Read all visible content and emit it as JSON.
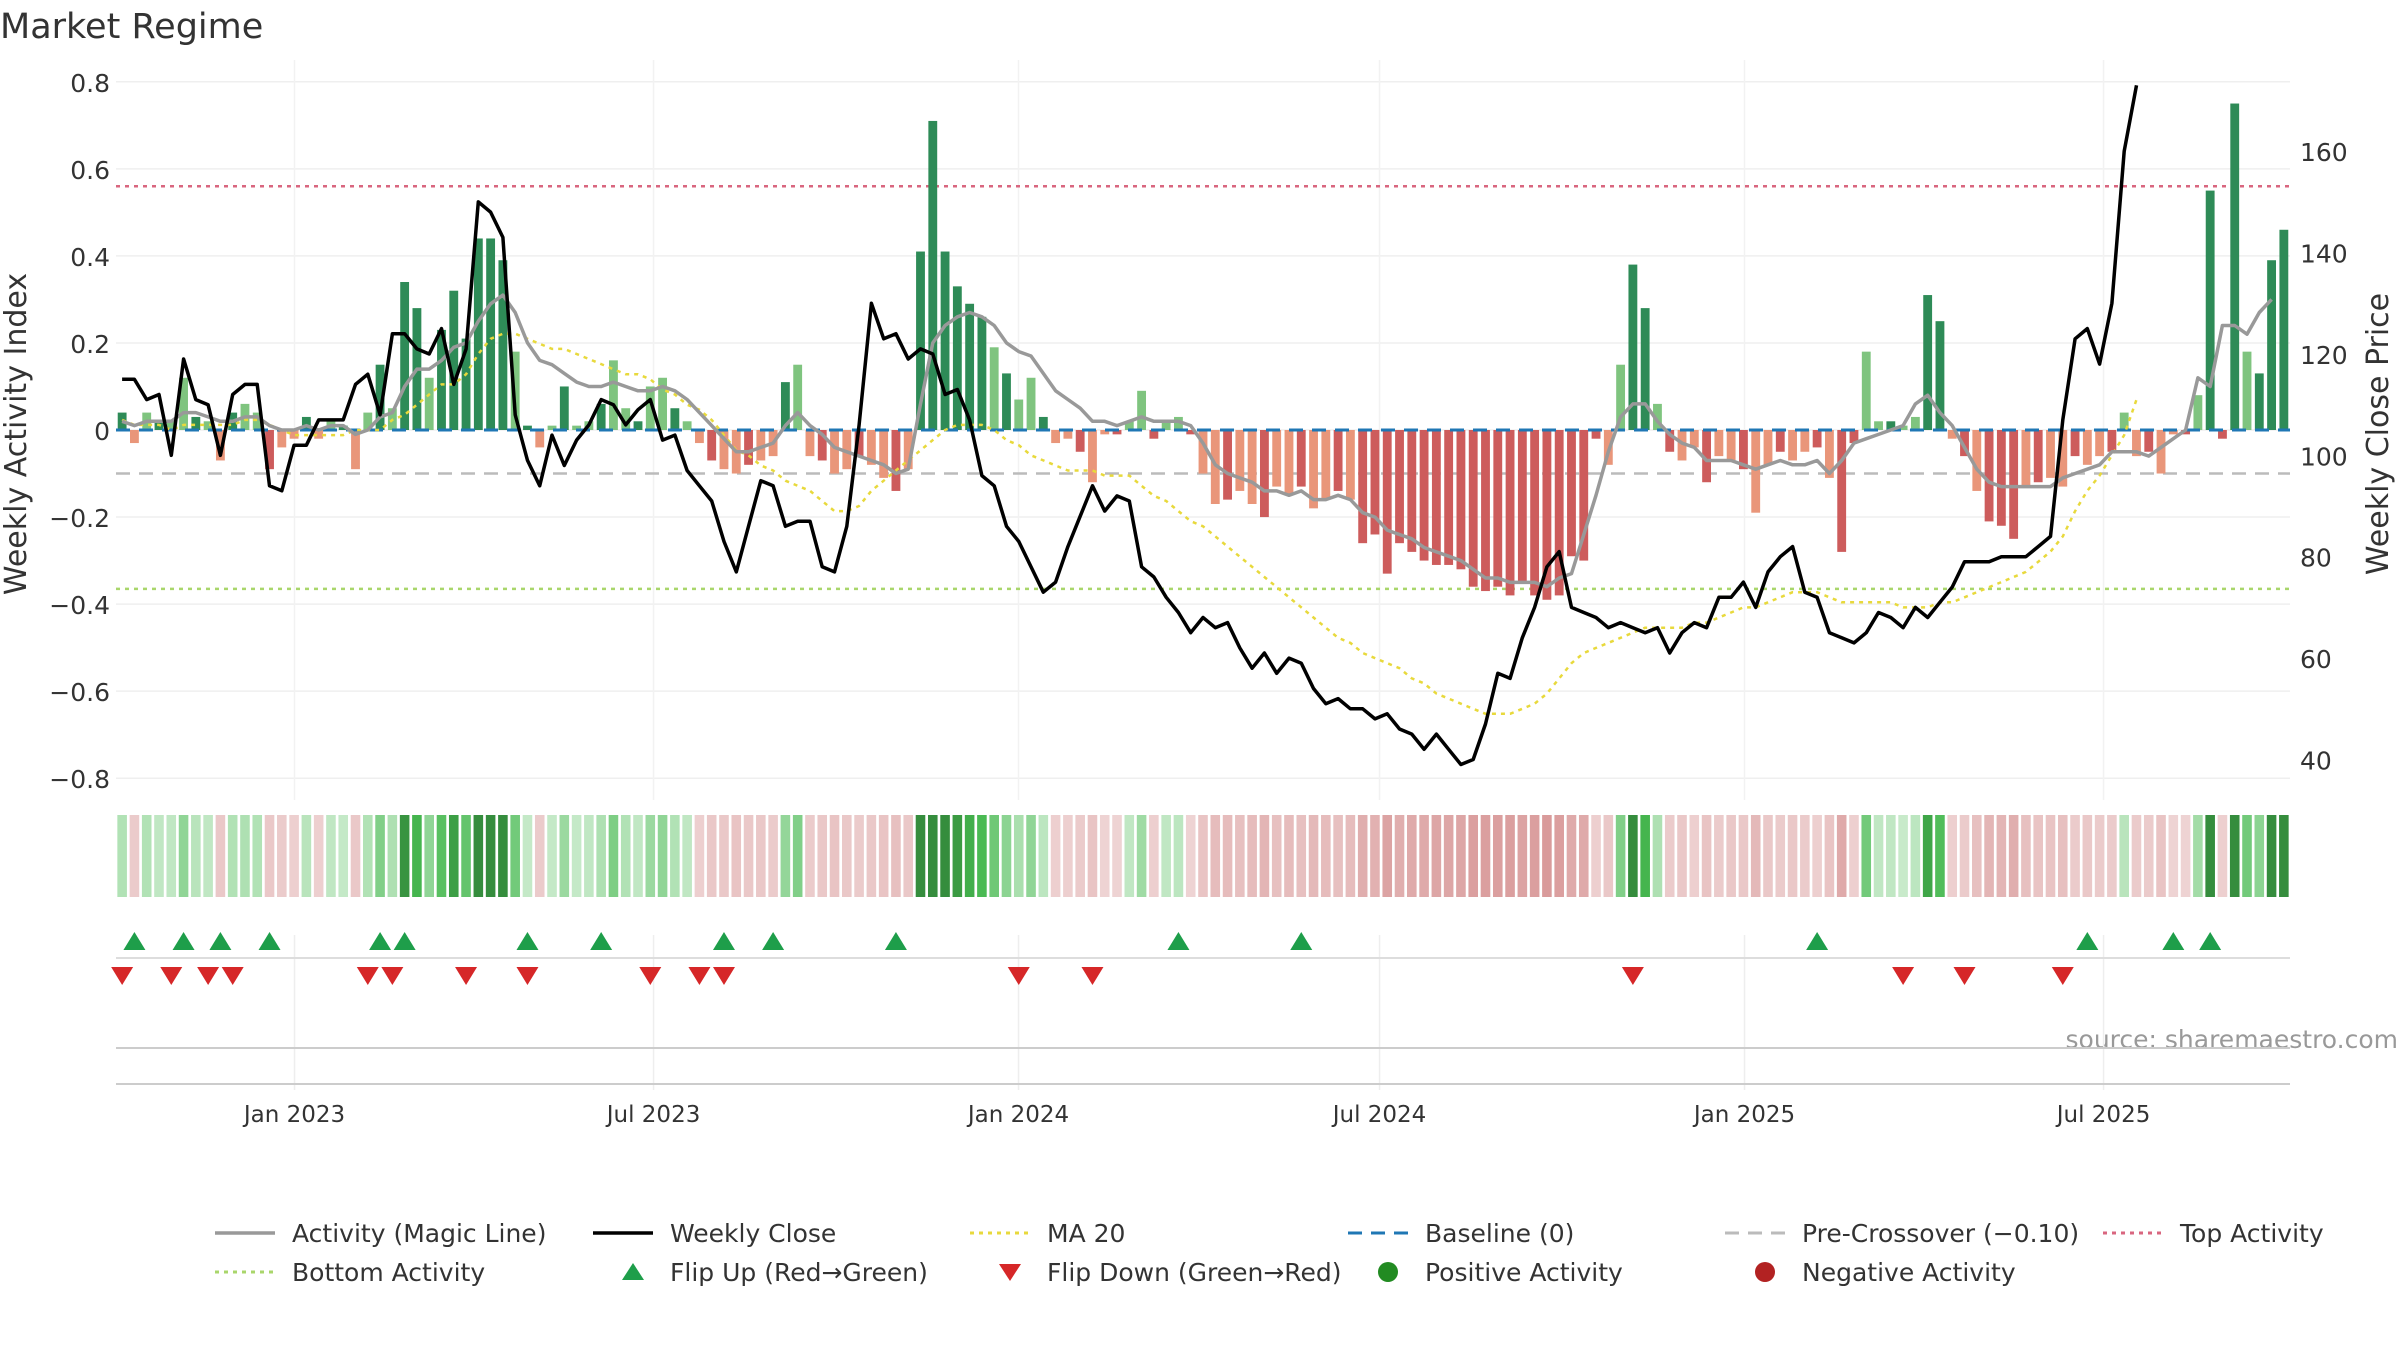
{
  "title": "Market Regime",
  "source": "source: sharemaestro.com",
  "colors": {
    "green_dark": "#2e8b57",
    "green_light": "#7fc47f",
    "red_dark": "#cd5c5c",
    "red_light": "#e9967a",
    "magic_line": "#999999",
    "close": "#000000",
    "ma20": "#e8d93c",
    "baseline": "#1f77b4",
    "pre_crossover": "#bbbbbb",
    "top": "#d9667f",
    "bottom": "#a9d66b",
    "flip_up": "#1e9e4a",
    "flip_down": "#d62728",
    "positive": "#228b22",
    "negative": "#b22222"
  },
  "chart_data": {
    "type": "bar",
    "title": "Market Regime",
    "ylabel": "Weekly Activity Index",
    "y2label": "Weekly Close Price",
    "ylim": [
      -0.85,
      0.85
    ],
    "y2lim": [
      32,
      178
    ],
    "yticks": [
      "0.8",
      "0.6",
      "0.4",
      "0.2",
      "0",
      "−0.2",
      "−0.4",
      "−0.6",
      "−0.8"
    ],
    "ytick_values": [
      0.8,
      0.6,
      0.4,
      0.2,
      0,
      -0.2,
      -0.4,
      -0.6,
      -0.8
    ],
    "y2ticks": [
      "160",
      "140",
      "120",
      "100",
      "80",
      "60",
      "40"
    ],
    "y2tick_values": [
      160,
      140,
      120,
      100,
      80,
      60,
      40
    ],
    "x_start": "2022-10-03",
    "x_end": "2025-10-03",
    "xticks": [
      "Jan 2023",
      "Jul 2023",
      "Jan 2024",
      "Jul 2024",
      "Jan 2025",
      "Jul 2025"
    ],
    "xtick_dates": [
      "2023-01-01",
      "2023-07-01",
      "2024-01-01",
      "2024-07-01",
      "2025-01-01",
      "2025-07-01"
    ],
    "grid": true,
    "legend_position": "bottom",
    "reference_lines": {
      "baseline": 0,
      "pre_crossover": -0.1,
      "top": 0.56,
      "bottom": -0.365
    },
    "activity": [
      0.04,
      -0.03,
      0.04,
      0.02,
      0.02,
      0.12,
      0.03,
      0.02,
      -0.07,
      0.04,
      0.06,
      0.04,
      -0.09,
      -0.04,
      -0.02,
      0.03,
      -0.02,
      0.02,
      0.01,
      -0.09,
      0.04,
      0.15,
      0.05,
      0.34,
      0.28,
      0.12,
      0.23,
      0.32,
      0.21,
      0.44,
      0.44,
      0.39,
      0.18,
      0.01,
      -0.04,
      0.01,
      0.1,
      0.01,
      0.02,
      0.06,
      0.16,
      0.05,
      0.02,
      0.1,
      0.12,
      0.05,
      0.02,
      -0.03,
      -0.07,
      -0.09,
      -0.1,
      -0.08,
      -0.07,
      -0.06,
      0.11,
      0.15,
      -0.06,
      -0.07,
      -0.1,
      -0.09,
      -0.06,
      -0.08,
      -0.11,
      -0.14,
      -0.09,
      0.41,
      0.71,
      0.41,
      0.33,
      0.29,
      0.26,
      0.19,
      0.13,
      0.07,
      0.12,
      0.03,
      -0.03,
      -0.02,
      -0.05,
      -0.12,
      -0.01,
      -0.01,
      0.02,
      0.09,
      -0.02,
      0.02,
      0.03,
      -0.01,
      -0.1,
      -0.17,
      -0.16,
      -0.14,
      -0.17,
      -0.2,
      -0.13,
      -0.15,
      -0.13,
      -0.18,
      -0.16,
      -0.14,
      -0.16,
      -0.26,
      -0.24,
      -0.33,
      -0.26,
      -0.28,
      -0.3,
      -0.31,
      -0.31,
      -0.32,
      -0.36,
      -0.37,
      -0.36,
      -0.38,
      -0.35,
      -0.38,
      -0.39,
      -0.38,
      -0.29,
      -0.3,
      -0.02,
      -0.08,
      0.15,
      0.38,
      0.28,
      0.06,
      -0.05,
      -0.07,
      -0.04,
      -0.12,
      -0.06,
      -0.07,
      -0.09,
      -0.19,
      -0.08,
      -0.05,
      -0.07,
      -0.05,
      -0.04,
      -0.11,
      -0.28,
      -0.03,
      0.18,
      0.02,
      0.02,
      0.01,
      0.03,
      0.31,
      0.25,
      -0.02,
      -0.06,
      -0.14,
      -0.21,
      -0.22,
      -0.25,
      -0.13,
      -0.12,
      -0.11,
      -0.13,
      -0.06,
      -0.08,
      -0.06,
      -0.05,
      0.04,
      -0.06,
      -0.05,
      -0.1,
      -0.01,
      -0.01,
      0.08,
      0.55,
      -0.02,
      0.75,
      0.18,
      0.13,
      0.39,
      0.46
    ],
    "magic_line": [
      0.02,
      0.01,
      0.02,
      0.02,
      0.02,
      0.04,
      0.04,
      0.03,
      0.02,
      0.02,
      0.03,
      0.03,
      0.01,
      0.0,
      0.0,
      0.01,
      0.0,
      0.01,
      0.01,
      -0.01,
      0.0,
      0.03,
      0.04,
      0.1,
      0.14,
      0.14,
      0.16,
      0.19,
      0.2,
      0.25,
      0.29,
      0.31,
      0.27,
      0.2,
      0.16,
      0.15,
      0.13,
      0.11,
      0.1,
      0.1,
      0.11,
      0.1,
      0.09,
      0.09,
      0.1,
      0.09,
      0.07,
      0.04,
      0.01,
      -0.02,
      -0.05,
      -0.05,
      -0.04,
      -0.03,
      0.01,
      0.04,
      0.01,
      -0.01,
      -0.04,
      -0.05,
      -0.06,
      -0.07,
      -0.08,
      -0.1,
      -0.09,
      0.06,
      0.2,
      0.24,
      0.26,
      0.27,
      0.26,
      0.24,
      0.2,
      0.18,
      0.17,
      0.13,
      0.09,
      0.07,
      0.05,
      0.02,
      0.02,
      0.01,
      0.02,
      0.03,
      0.02,
      0.02,
      0.02,
      0.01,
      -0.03,
      -0.08,
      -0.1,
      -0.11,
      -0.12,
      -0.14,
      -0.14,
      -0.15,
      -0.14,
      -0.16,
      -0.16,
      -0.15,
      -0.16,
      -0.19,
      -0.2,
      -0.23,
      -0.24,
      -0.25,
      -0.27,
      -0.28,
      -0.29,
      -0.3,
      -0.32,
      -0.34,
      -0.34,
      -0.35,
      -0.35,
      -0.35,
      -0.36,
      -0.34,
      -0.33,
      -0.24,
      -0.15,
      -0.05,
      0.03,
      0.06,
      0.06,
      0.02,
      -0.01,
      -0.03,
      -0.04,
      -0.07,
      -0.07,
      -0.07,
      -0.08,
      -0.09,
      -0.08,
      -0.07,
      -0.08,
      -0.08,
      -0.07,
      -0.1,
      -0.07,
      -0.03,
      -0.02,
      -0.01,
      0.0,
      0.01,
      0.06,
      0.08,
      0.04,
      0.01,
      -0.04,
      -0.09,
      -0.12,
      -0.13,
      -0.13,
      -0.13,
      -0.13,
      -0.13,
      -0.11,
      -0.1,
      -0.09,
      -0.08,
      -0.05,
      -0.05,
      -0.05,
      -0.06,
      -0.04,
      -0.02,
      0.0,
      0.12,
      0.1,
      0.24,
      0.24,
      0.22,
      0.27,
      0.3
    ],
    "weekly_close": [
      115,
      115,
      111,
      112,
      100,
      119,
      111,
      110,
      100,
      112,
      114,
      114,
      94,
      93,
      102,
      102,
      107,
      107,
      107,
      114,
      116,
      108,
      124,
      124,
      121,
      120,
      125,
      114,
      121,
      150,
      148,
      143,
      108,
      99,
      94,
      104,
      98,
      103,
      106,
      111,
      110,
      106,
      109,
      111,
      103,
      104,
      97,
      94,
      91,
      83,
      77,
      86,
      95,
      94,
      86,
      87,
      87,
      78,
      77,
      86,
      106,
      130,
      123,
      124,
      119,
      121,
      120,
      112,
      113,
      107,
      96,
      94,
      86,
      83,
      78,
      73,
      75,
      82,
      88,
      94,
      89,
      92,
      91,
      78,
      76,
      72,
      69,
      65,
      68,
      66,
      67,
      62,
      58,
      61,
      57,
      60,
      59,
      54,
      51,
      52,
      50,
      50,
      48,
      49,
      46,
      45,
      42,
      45,
      42,
      39,
      40,
      47,
      57,
      56,
      64,
      70,
      78,
      81,
      70,
      69,
      68,
      66,
      67,
      66,
      65,
      66,
      61,
      65,
      67,
      66,
      72,
      72,
      75,
      70,
      77,
      80,
      82,
      73,
      72,
      65,
      64,
      63,
      65,
      69,
      68,
      66,
      70,
      68,
      71,
      74,
      79,
      79,
      79,
      80,
      80,
      80,
      82,
      84,
      107,
      123,
      125,
      118,
      130,
      160,
      173
    ],
    "ma20": [
      107,
      106,
      106,
      106,
      105,
      106,
      106,
      106,
      106,
      106,
      107,
      107,
      106,
      105,
      104,
      104,
      104,
      104,
      104,
      105,
      105,
      105,
      107,
      108,
      110,
      112,
      114,
      114,
      116,
      120,
      123,
      124,
      124,
      123,
      122,
      121,
      121,
      120,
      119,
      118,
      117,
      116,
      116,
      115,
      113,
      112,
      110,
      109,
      107,
      104,
      101,
      100,
      98,
      97,
      95,
      94,
      93,
      91,
      89,
      89,
      90,
      93,
      95,
      97,
      99,
      101,
      103,
      105,
      106,
      106,
      106,
      105,
      103,
      102,
      100,
      99,
      98,
      97,
      97,
      97,
      96,
      96,
      96,
      94,
      92,
      91,
      89,
      87,
      86,
      84,
      82,
      80,
      78,
      76,
      74,
      72,
      70,
      68,
      66,
      64,
      63,
      61,
      60,
      59,
      58,
      56,
      55,
      53,
      52,
      51,
      50,
      49,
      49,
      49,
      50,
      51,
      53,
      56,
      59,
      61,
      62,
      63,
      64,
      65,
      66,
      66,
      66,
      66,
      67,
      67,
      68,
      69,
      70,
      70,
      71,
      72,
      73,
      73,
      73,
      72,
      71,
      71,
      71,
      71,
      71,
      70,
      70,
      70,
      71,
      71,
      72,
      73,
      74,
      75,
      76,
      77,
      79,
      81,
      84,
      89,
      93,
      96,
      100,
      104,
      111
    ],
    "regime_strip_intensity": [
      0.14,
      0.08,
      0.14,
      0.07,
      0.07,
      0.33,
      0.1,
      0.07,
      0.1,
      0.14,
      0.17,
      0.14,
      0.12,
      0.06,
      0.03,
      0.1,
      0.03,
      0.07,
      0.04,
      0.12,
      0.14,
      0.42,
      0.17,
      0.95,
      0.78,
      0.33,
      0.64,
      0.9,
      0.58,
      1.0,
      1.0,
      1.0,
      0.5,
      0.04,
      0.06,
      0.04,
      0.28,
      0.04,
      0.06,
      0.17,
      0.44,
      0.14,
      0.06,
      0.28,
      0.33,
      0.14,
      0.06,
      0.04,
      0.1,
      0.12,
      0.13,
      0.11,
      0.1,
      0.08,
      0.31,
      0.42,
      0.08,
      0.1,
      0.13,
      0.12,
      0.08,
      0.11,
      0.15,
      0.19,
      0.12,
      1.0,
      1.0,
      1.0,
      0.92,
      0.81,
      0.72,
      0.53,
      0.36,
      0.19,
      0.33,
      0.08,
      0.04,
      0.03,
      0.07,
      0.16,
      0.01,
      0.01,
      0.06,
      0.25,
      0.03,
      0.06,
      0.08,
      0.01,
      0.13,
      0.23,
      0.22,
      0.19,
      0.23,
      0.27,
      0.18,
      0.2,
      0.18,
      0.24,
      0.22,
      0.19,
      0.22,
      0.35,
      0.32,
      0.45,
      0.35,
      0.38,
      0.41,
      0.42,
      0.42,
      0.43,
      0.49,
      0.5,
      0.49,
      0.51,
      0.47,
      0.51,
      0.53,
      0.51,
      0.39,
      0.41,
      0.03,
      0.11,
      0.42,
      1.0,
      0.78,
      0.17,
      0.07,
      0.09,
      0.05,
      0.16,
      0.08,
      0.09,
      0.12,
      0.26,
      0.11,
      0.07,
      0.09,
      0.07,
      0.05,
      0.15,
      0.38,
      0.04,
      0.5,
      0.06,
      0.06,
      0.03,
      0.08,
      0.86,
      0.69,
      0.03,
      0.08,
      0.19,
      0.28,
      0.3,
      0.34,
      0.18,
      0.16,
      0.15,
      0.18,
      0.08,
      0.11,
      0.08,
      0.07,
      0.11,
      0.08,
      0.07,
      0.14,
      0.01,
      0.01,
      0.22,
      1.0,
      0.03,
      1.0,
      0.5,
      0.36,
      1.0,
      1.0
    ],
    "flip_up_weeks": [
      1,
      5,
      8,
      12,
      21,
      23,
      33,
      39,
      49,
      53,
      63,
      86,
      96,
      138,
      160,
      167,
      170
    ],
    "flip_down_weeks": [
      0,
      4,
      7,
      9,
      20,
      22,
      28,
      33,
      43,
      47,
      49,
      73,
      79,
      123,
      145,
      150,
      158
    ],
    "series": [
      {
        "name": "Activity (Magic Line)",
        "kind": "line",
        "color": "#999999"
      },
      {
        "name": "Weekly Close",
        "kind": "line",
        "color": "#000000"
      },
      {
        "name": "MA 20",
        "kind": "dotted",
        "color": "#e8d93c"
      },
      {
        "name": "Baseline (0)",
        "kind": "dashed",
        "color": "#1f77b4"
      },
      {
        "name": "Pre-Crossover (−0.10)",
        "kind": "dashed",
        "color": "#bbbbbb"
      },
      {
        "name": "Top Activity",
        "kind": "dotted",
        "color": "#d9667f"
      },
      {
        "name": "Bottom Activity",
        "kind": "dotted",
        "color": "#a9d66b"
      },
      {
        "name": "Flip Up (Red→Green)",
        "kind": "triangle-up",
        "color": "#1e9e4a"
      },
      {
        "name": "Flip Down (Green→Red)",
        "kind": "triangle-down",
        "color": "#d62728"
      },
      {
        "name": "Positive Activity",
        "kind": "dot",
        "color": "#228b22"
      },
      {
        "name": "Negative Activity",
        "kind": "dot",
        "color": "#b22222"
      }
    ]
  }
}
